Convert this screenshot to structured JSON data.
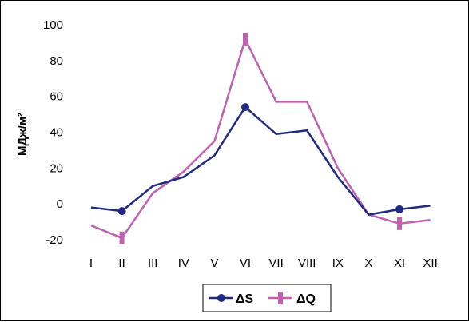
{
  "chart_data": {
    "type": "line",
    "ylabel": "МДж/м²",
    "ylim": [
      -20,
      100
    ],
    "yticks": [
      -20,
      0,
      20,
      40,
      60,
      80,
      100
    ],
    "grid": false,
    "legend_position": "bottom-center",
    "categories": [
      "I",
      "II",
      "III",
      "IV",
      "V",
      "VI",
      "VII",
      "VIII",
      "IX",
      "X",
      "XI",
      "XII"
    ],
    "series": [
      {
        "name": "ΔS",
        "color": "#1F2A80",
        "marker": "circle",
        "values": [
          -2,
          -4,
          10,
          15,
          27,
          54,
          39,
          41,
          15,
          -6,
          -3,
          -1
        ]
      },
      {
        "name": "ΔQ",
        "color": "#C060B0",
        "marker": "plus-bar",
        "values": [
          -12,
          -19,
          6,
          18,
          35,
          92,
          57,
          57,
          20,
          -6,
          -11,
          -9
        ]
      }
    ]
  }
}
